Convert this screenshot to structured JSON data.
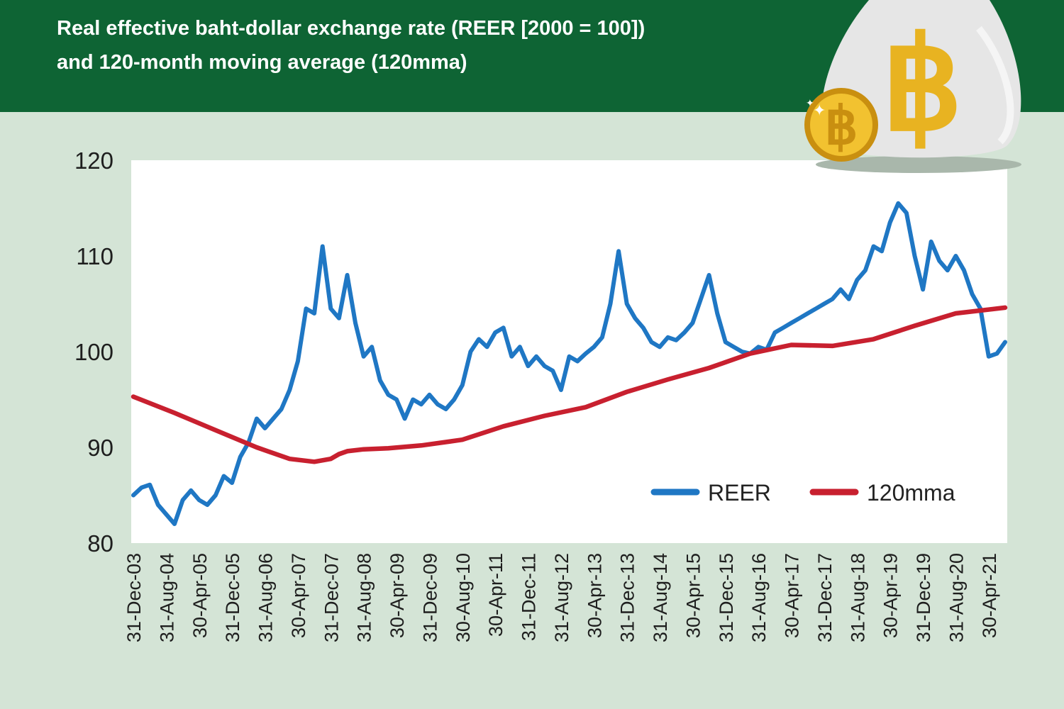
{
  "header": {
    "title_line1": "Real effective baht-dollar exchange rate (REER [2000 = 100])",
    "title_line2": "and 120-month moving average (120mma)"
  },
  "colors": {
    "header_bg": "#0e6434",
    "page_bg": "#d4e4d6",
    "reer": "#1f77c4",
    "mma": "#c8202f",
    "coin": "#e8b321",
    "bag": "#e6e6e6"
  },
  "icons": [
    "money-bag-icon",
    "bitcoin-coin-icon"
  ],
  "chart_data": {
    "type": "line",
    "title": "Real effective baht-dollar exchange rate (REER [2000 = 100]) and 120-month moving average (120mma)",
    "xlabel": "",
    "ylabel": "",
    "ylim": [
      80,
      120
    ],
    "yticks": [
      80,
      90,
      100,
      110,
      120
    ],
    "legend_position": "bottom-right",
    "x_start": "31-Dec-03",
    "x_step_months": 8,
    "tick_labels": [
      "31-Dec-03",
      "31-Aug-04",
      "30-Apr-05",
      "31-Dec-05",
      "31-Aug-06",
      "30-Apr-07",
      "31-Dec-07",
      "31-Aug-08",
      "30-Apr-09",
      "31-Dec-09",
      "30-Aug-10",
      "30-Apr-11",
      "31-Dec-11",
      "31-Aug-12",
      "30-Apr-13",
      "31-Dec-13",
      "31-Aug-14",
      "30-Apr-15",
      "31-Dec-15",
      "31-Aug-16",
      "30-Apr-17",
      "31-Dec-17",
      "31-Aug-18",
      "30-Apr-19",
      "31-Dec-19",
      "31-Aug-20",
      "30-Apr-21"
    ],
    "series": [
      {
        "name": "REER",
        "x_months": [
          0,
          2,
          4,
          6,
          8,
          10,
          12,
          14,
          16,
          18,
          20,
          22,
          24,
          26,
          28,
          30,
          32,
          34,
          36,
          38,
          40,
          42,
          44,
          46,
          48,
          50,
          52,
          54,
          56,
          58,
          60,
          62,
          64,
          66,
          68,
          70,
          72,
          74,
          76,
          78,
          80,
          82,
          84,
          86,
          88,
          90,
          92,
          94,
          96,
          98,
          100,
          102,
          104,
          106,
          108,
          110,
          112,
          114,
          116,
          118,
          120,
          122,
          124,
          126,
          128,
          130,
          132,
          134,
          136,
          138,
          140,
          142,
          144,
          146,
          148,
          150,
          152,
          154,
          156,
          158,
          160,
          162,
          164,
          166,
          168,
          170,
          172,
          174,
          176,
          178,
          180,
          182,
          184,
          186,
          188,
          190,
          192,
          194,
          196,
          198,
          200,
          202,
          204,
          206,
          208,
          210,
          212
        ],
        "values": [
          85.0,
          85.8,
          86.1,
          84.0,
          83.0,
          82.0,
          84.5,
          85.5,
          84.5,
          84.0,
          85.0,
          87.0,
          86.3,
          89.0,
          90.5,
          93.0,
          92.0,
          93.0,
          94.0,
          96.0,
          99.0,
          104.5,
          104.0,
          111.0,
          104.5,
          103.5,
          108.0,
          103.0,
          99.5,
          100.5,
          97.0,
          95.5,
          95.0,
          93.0,
          95.0,
          94.5,
          95.5,
          94.5,
          94.0,
          95.0,
          96.5,
          100.0,
          101.3,
          100.5,
          102.0,
          102.5,
          99.5,
          100.5,
          98.5,
          99.5,
          98.5,
          98.0,
          96.0,
          99.5,
          99.0,
          99.8,
          100.5,
          101.5,
          105.0,
          110.5,
          105.0,
          103.5,
          102.5,
          101.0,
          100.5,
          101.5,
          101.2,
          102.0,
          103.0,
          105.5,
          108.0,
          104.0,
          101.0,
          100.5,
          100.0,
          99.8,
          100.5,
          100.2,
          102.0,
          102.5,
          103.0,
          103.5,
          104.0,
          104.5,
          105.0,
          105.5,
          106.5,
          105.5,
          107.5,
          108.5,
          111.0,
          110.5,
          113.5,
          115.5,
          114.5,
          110.0,
          106.5,
          111.5,
          109.5,
          108.5,
          110.0,
          108.5,
          106.0,
          104.5,
          99.5,
          99.8,
          101.0
        ]
      },
      {
        "name": "120mma",
        "x_months": [
          0,
          10,
          20,
          30,
          38,
          44,
          48,
          50,
          52,
          56,
          62,
          70,
          80,
          90,
          100,
          110,
          120,
          130,
          140,
          150,
          160,
          170,
          180,
          190,
          200,
          212
        ],
        "values": [
          95.3,
          93.6,
          91.8,
          90.0,
          88.8,
          88.5,
          88.8,
          89.3,
          89.6,
          89.8,
          89.9,
          90.2,
          90.8,
          92.2,
          93.3,
          94.2,
          95.8,
          97.1,
          98.3,
          99.8,
          100.7,
          100.6,
          101.3,
          102.7,
          104.0,
          104.6
        ]
      }
    ]
  }
}
